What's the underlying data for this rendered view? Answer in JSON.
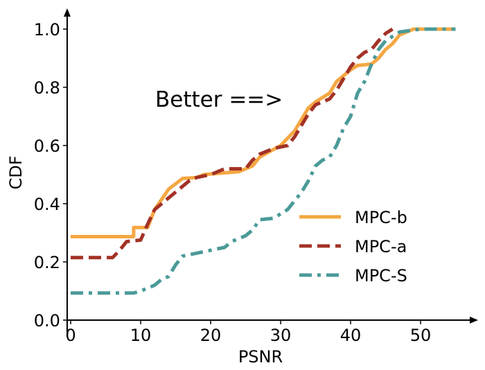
{
  "chart_data": {
    "type": "line",
    "subtype": "cdf",
    "title": "",
    "xlabel": "PSNR",
    "ylabel": "CDF",
    "xlim": [
      -0.5,
      55.5
    ],
    "ylim": [
      0.0,
      1.05
    ],
    "xticks": [
      0,
      10,
      20,
      30,
      40,
      50
    ],
    "yticks": [
      0.0,
      0.2,
      0.4,
      0.6,
      0.8,
      1.0
    ],
    "xtick_labels": [
      "0",
      "10",
      "20",
      "30",
      "40",
      "50"
    ],
    "ytick_labels": [
      "0.0",
      "0.2",
      "0.4",
      "0.6",
      "0.8",
      "1.0"
    ],
    "grid": false,
    "legend_position": "lower-right",
    "annotation": "Better ==>",
    "series": [
      {
        "name": "MPC-b",
        "color": "#F5A742",
        "dash": "solid",
        "points": [
          [
            0,
            0.287
          ],
          [
            9,
            0.287
          ],
          [
            9,
            0.318
          ],
          [
            11,
            0.318
          ],
          [
            12,
            0.38
          ],
          [
            14,
            0.45
          ],
          [
            16,
            0.487
          ],
          [
            18,
            0.49
          ],
          [
            19,
            0.5
          ],
          [
            24,
            0.51
          ],
          [
            26,
            0.53
          ],
          [
            27,
            0.56
          ],
          [
            30,
            0.6
          ],
          [
            32,
            0.65
          ],
          [
            33,
            0.69
          ],
          [
            34,
            0.73
          ],
          [
            35,
            0.75
          ],
          [
            37,
            0.78
          ],
          [
            38,
            0.82
          ],
          [
            39,
            0.84
          ],
          [
            40,
            0.86
          ],
          [
            41,
            0.875
          ],
          [
            43,
            0.88
          ],
          [
            44,
            0.9
          ],
          [
            45,
            0.93
          ],
          [
            46,
            0.95
          ],
          [
            47,
            0.98
          ],
          [
            48,
            0.99
          ],
          [
            49,
            1.0
          ],
          [
            55,
            1.0
          ]
        ]
      },
      {
        "name": "MPC-a",
        "color": "#A33226",
        "dash": "dashed",
        "points": [
          [
            0,
            0.215
          ],
          [
            6,
            0.215
          ],
          [
            7,
            0.24
          ],
          [
            8,
            0.27
          ],
          [
            10,
            0.275
          ],
          [
            11,
            0.33
          ],
          [
            12,
            0.38
          ],
          [
            14,
            0.42
          ],
          [
            16,
            0.46
          ],
          [
            17,
            0.48
          ],
          [
            18,
            0.49
          ],
          [
            20,
            0.5
          ],
          [
            21,
            0.51
          ],
          [
            22,
            0.52
          ],
          [
            25,
            0.52
          ],
          [
            26,
            0.55
          ],
          [
            27,
            0.57
          ],
          [
            29,
            0.59
          ],
          [
            31,
            0.6
          ],
          [
            32,
            0.63
          ],
          [
            34,
            0.71
          ],
          [
            35,
            0.74
          ],
          [
            37,
            0.76
          ],
          [
            38,
            0.79
          ],
          [
            39,
            0.83
          ],
          [
            40,
            0.87
          ],
          [
            41,
            0.9
          ],
          [
            42,
            0.92
          ],
          [
            43,
            0.93
          ],
          [
            44,
            0.96
          ],
          [
            45,
            0.985
          ],
          [
            46,
            1.0
          ]
        ]
      },
      {
        "name": "MPC-S",
        "color": "#4A9A98",
        "dash": "dashdot",
        "points": [
          [
            0,
            0.093
          ],
          [
            9,
            0.093
          ],
          [
            10,
            0.1
          ],
          [
            12,
            0.12
          ],
          [
            13,
            0.14
          ],
          [
            14,
            0.15
          ],
          [
            15,
            0.19
          ],
          [
            16,
            0.22
          ],
          [
            18,
            0.23
          ],
          [
            20,
            0.24
          ],
          [
            22,
            0.25
          ],
          [
            23,
            0.27
          ],
          [
            25,
            0.29
          ],
          [
            26,
            0.31
          ],
          [
            27,
            0.345
          ],
          [
            29,
            0.35
          ],
          [
            31,
            0.38
          ],
          [
            32,
            0.41
          ],
          [
            33,
            0.44
          ],
          [
            34,
            0.48
          ],
          [
            35,
            0.53
          ],
          [
            36,
            0.55
          ],
          [
            37,
            0.56
          ],
          [
            38,
            0.6
          ],
          [
            39,
            0.66
          ],
          [
            40,
            0.7
          ],
          [
            41,
            0.78
          ],
          [
            42,
            0.82
          ],
          [
            43,
            0.88
          ],
          [
            44,
            0.93
          ],
          [
            45,
            0.96
          ],
          [
            47,
            0.99
          ],
          [
            50,
            1.0
          ],
          [
            55,
            1.0
          ]
        ]
      }
    ]
  }
}
